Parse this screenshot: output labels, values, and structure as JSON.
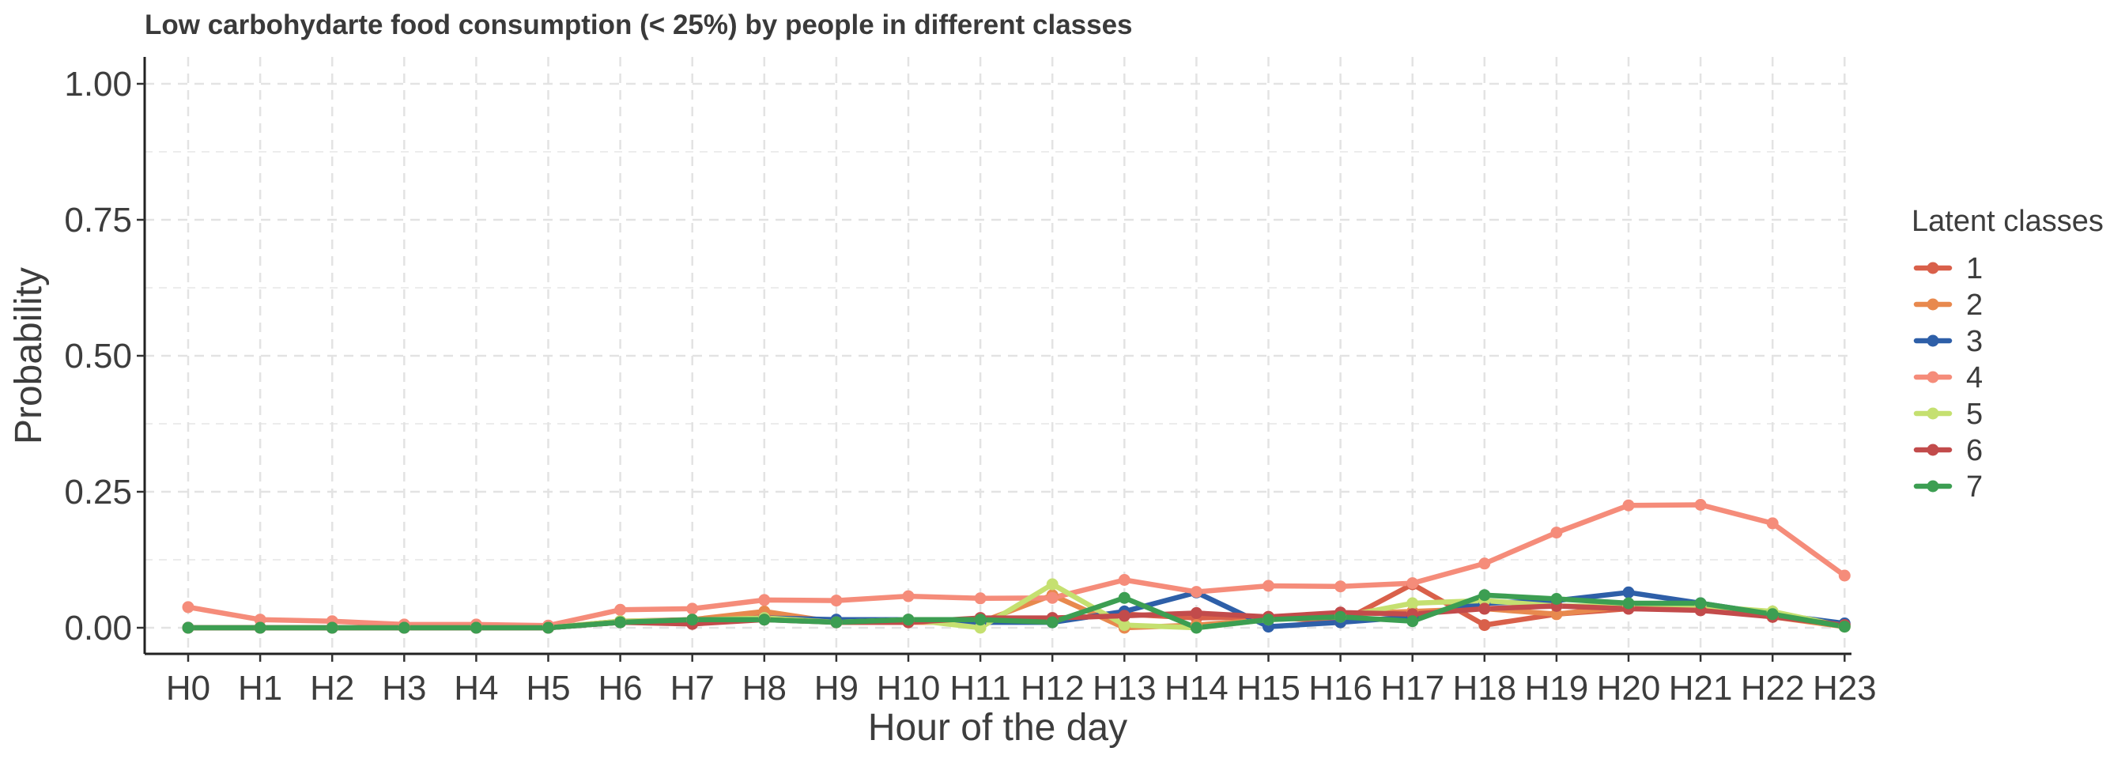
{
  "chart_data": {
    "type": "line",
    "title": "Low carbohydarte food consumption (< 25%) by people in different classes",
    "xlabel": "Hour of the day",
    "ylabel": "Probability",
    "ylim": [
      0,
      1
    ],
    "yticks": [
      "0.00",
      "0.25",
      "0.50",
      "0.75",
      "1.00"
    ],
    "ytick_values": [
      0,
      0.25,
      0.5,
      0.75,
      1.0
    ],
    "grid": true,
    "legend_title": "Latent classes",
    "legend_position": "right",
    "categories": [
      "H0",
      "H1",
      "H2",
      "H3",
      "H4",
      "H5",
      "H6",
      "H7",
      "H8",
      "H9",
      "H10",
      "H11",
      "H12",
      "H13",
      "H14",
      "H15",
      "H16",
      "H17",
      "H18",
      "H19",
      "H20",
      "H21",
      "H22",
      "H23"
    ],
    "series": [
      {
        "name": "1",
        "color": "#d9604a",
        "values": [
          0.0,
          0.0,
          0.0,
          0.0,
          0.0,
          0.0,
          0.012,
          0.015,
          0.02,
          0.01,
          0.015,
          0.015,
          0.015,
          0.025,
          0.018,
          0.02,
          0.01,
          0.08,
          0.005,
          0.025,
          0.035,
          0.035,
          0.02,
          0.005
        ]
      },
      {
        "name": "2",
        "color": "#e8894e",
        "values": [
          0.0,
          0.0,
          0.0,
          0.0,
          0.0,
          0.0,
          0.01,
          0.015,
          0.03,
          0.01,
          0.01,
          0.01,
          0.06,
          0.0,
          0.005,
          0.015,
          0.025,
          0.03,
          0.035,
          0.025,
          0.04,
          0.04,
          0.02,
          0.002
        ]
      },
      {
        "name": "3",
        "color": "#2e5fa8",
        "values": [
          0.0,
          0.0,
          0.0,
          0.0,
          0.0,
          0.0,
          0.01,
          0.012,
          0.018,
          0.015,
          0.015,
          0.01,
          0.01,
          0.03,
          0.065,
          0.002,
          0.01,
          0.02,
          0.045,
          0.05,
          0.065,
          0.045,
          0.025,
          0.008
        ]
      },
      {
        "name": "4",
        "color": "#f58c7a",
        "values": [
          0.038,
          0.015,
          0.012,
          0.006,
          0.006,
          0.004,
          0.033,
          0.035,
          0.051,
          0.05,
          0.058,
          0.054,
          0.055,
          0.088,
          0.066,
          0.077,
          0.076,
          0.082,
          0.118,
          0.175,
          0.225,
          0.226,
          0.192,
          0.096
        ]
      },
      {
        "name": "5",
        "color": "#c5e070",
        "values": [
          0.0,
          0.0,
          0.0,
          0.0,
          0.0,
          0.0,
          0.012,
          0.014,
          0.018,
          0.01,
          0.015,
          0.0,
          0.08,
          0.005,
          0.0,
          0.015,
          0.02,
          0.045,
          0.05,
          0.04,
          0.04,
          0.04,
          0.03,
          0.002
        ]
      },
      {
        "name": "6",
        "color": "#c24b4b",
        "values": [
          0.0,
          0.0,
          0.0,
          0.0,
          0.0,
          0.0,
          0.01,
          0.007,
          0.015,
          0.01,
          0.01,
          0.018,
          0.018,
          0.022,
          0.027,
          0.02,
          0.028,
          0.025,
          0.035,
          0.04,
          0.035,
          0.032,
          0.02,
          0.005
        ]
      },
      {
        "name": "7",
        "color": "#3c9e52",
        "values": [
          0.0,
          0.0,
          0.0,
          0.0,
          0.0,
          0.0,
          0.01,
          0.015,
          0.015,
          0.01,
          0.015,
          0.015,
          0.01,
          0.055,
          0.0,
          0.015,
          0.02,
          0.012,
          0.06,
          0.053,
          0.045,
          0.045,
          0.025,
          0.002
        ]
      }
    ]
  }
}
